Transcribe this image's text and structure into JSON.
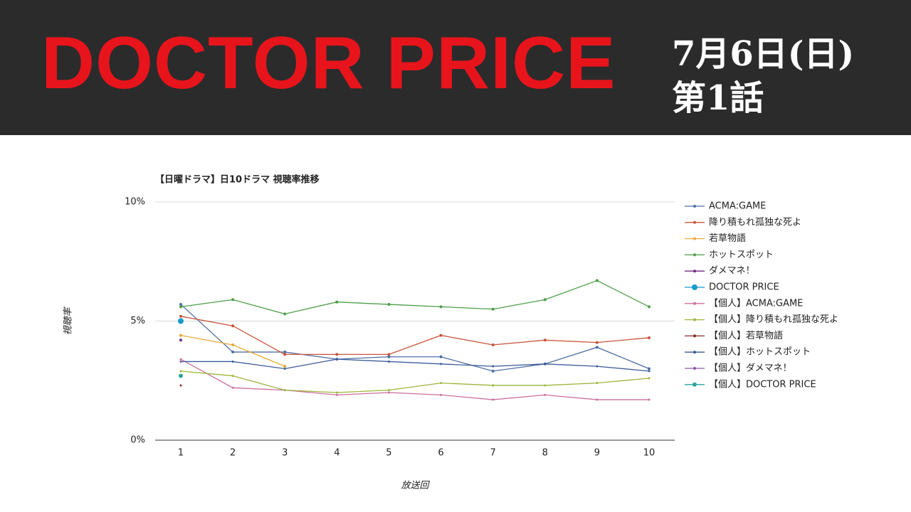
{
  "header": {
    "title": "DOCTOR PRICE",
    "date": "7月6日(日)",
    "episode": "第1話"
  },
  "chart_data": {
    "type": "line",
    "title": "【日曜ドラマ】日10ドラマ 視聴率推移",
    "x_label": "放送回",
    "y_label": "視聴率",
    "categories": [
      "1",
      "2",
      "3",
      "4",
      "5",
      "6",
      "7",
      "8",
      "9",
      "10"
    ],
    "ylim": [
      0,
      10
    ],
    "yticks": [
      {
        "value": 0,
        "label": "0%"
      },
      {
        "value": 5,
        "label": "5%"
      },
      {
        "value": 10,
        "label": "10%"
      }
    ],
    "grid": true,
    "legend": "right",
    "series": [
      {
        "name": "ACMA:GAME",
        "color": "#4e6fa6",
        "marker_radius": 2,
        "values": [
          5.7,
          3.7,
          3.7,
          3.4,
          3.5,
          3.5,
          2.9,
          3.2,
          3.9,
          3.0
        ]
      },
      {
        "name": "降り積もれ孤独な死よ",
        "color": "#c9553b",
        "marker_radius": 2,
        "values": [
          5.2,
          4.8,
          3.6,
          3.6,
          3.6,
          4.4,
          4.0,
          4.2,
          4.1,
          4.3
        ]
      },
      {
        "name": "若草物語",
        "color": "#e9a93a",
        "marker_radius": 2,
        "values": [
          4.4,
          4.0,
          3.1,
          null,
          null,
          null,
          null,
          null,
          null,
          null
        ]
      },
      {
        "name": "ホットスポット",
        "color": "#4c9f47",
        "marker_radius": 2,
        "values": [
          5.6,
          5.9,
          5.3,
          5.8,
          5.7,
          5.6,
          5.5,
          5.9,
          6.7,
          5.6
        ]
      },
      {
        "name": "ダメマネ！",
        "color": "#6e2a82",
        "marker_radius": 2,
        "values": [
          4.2,
          null,
          null,
          null,
          null,
          null,
          null,
          null,
          null,
          null
        ]
      },
      {
        "name": "DOCTOR PRICE",
        "color": "#1a9ac9",
        "marker_radius": 4,
        "values": [
          5.0,
          null,
          null,
          null,
          null,
          null,
          null,
          null,
          null,
          null
        ]
      },
      {
        "name": "【個人】ACMA:GAME",
        "color": "#cc6f9c",
        "marker_radius": 1.5,
        "values": [
          3.4,
          2.2,
          2.1,
          1.9,
          2.0,
          1.9,
          1.7,
          1.9,
          1.7,
          1.7
        ]
      },
      {
        "name": "【個人】降り積もれ孤独な死よ",
        "color": "#9bb63a",
        "marker_radius": 1.5,
        "values": [
          2.9,
          2.7,
          2.1,
          2.0,
          2.1,
          2.4,
          2.3,
          2.3,
          2.4,
          2.6
        ]
      },
      {
        "name": "【個人】若草物語",
        "color": "#8e2c2c",
        "marker_radius": 1.5,
        "values": [
          2.3,
          null,
          null,
          null,
          null,
          null,
          null,
          null,
          null,
          null
        ]
      },
      {
        "name": "【個人】ホットスポット",
        "color": "#3c5a9a",
        "marker_radius": 1.5,
        "values": [
          3.3,
          3.3,
          3.0,
          3.4,
          3.3,
          3.2,
          3.1,
          3.2,
          3.1,
          2.9
        ]
      },
      {
        "name": "【個人】ダメマネ！",
        "color": "#8a5aa8",
        "marker_radius": 1.5,
        "values": [
          3.3,
          null,
          null,
          null,
          null,
          null,
          null,
          null,
          null,
          null
        ]
      },
      {
        "name": "【個人】DOCTOR PRICE",
        "color": "#2aa69a",
        "marker_radius": 3,
        "values": [
          2.7,
          null,
          null,
          null,
          null,
          null,
          null,
          null,
          null,
          null
        ]
      }
    ]
  }
}
